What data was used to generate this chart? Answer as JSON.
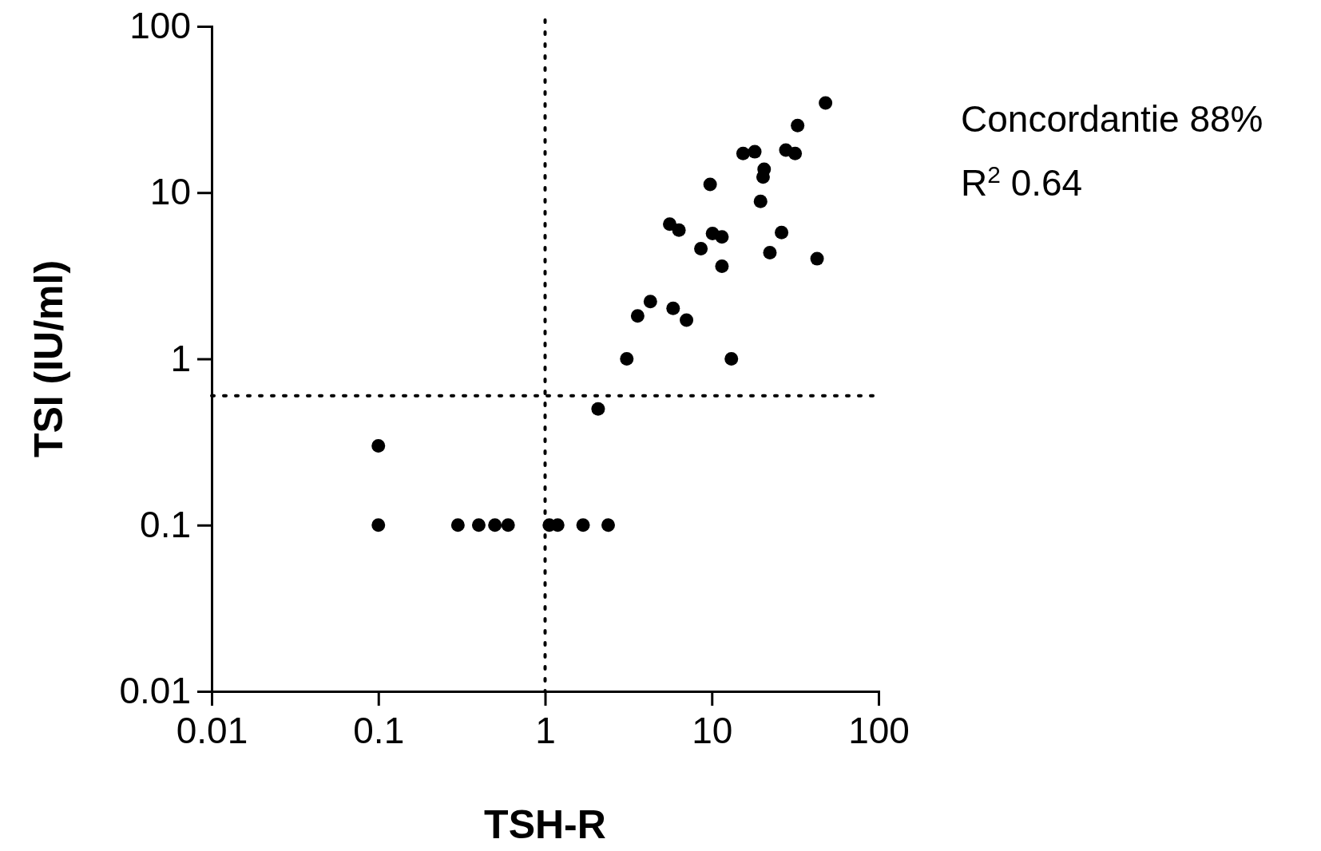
{
  "chart_data": {
    "type": "scatter",
    "xlabel": "TSH-R",
    "ylabel": "TSI (IU/ml)",
    "log": "xy",
    "marker": "circle",
    "xlim": [
      0.01,
      100
    ],
    "ylim": [
      0.01,
      100
    ],
    "xticks": [
      0.01,
      0.1,
      1,
      10,
      100
    ],
    "yticks": [
      0.01,
      0.1,
      1,
      10,
      100
    ],
    "series": [
      {
        "color": "#000000",
        "x": [
          0.1,
          0.1,
          0.3,
          0.4,
          0.5,
          0.6,
          1.06,
          1.19,
          1.69,
          2.39,
          2.08,
          3.09,
          3.59,
          4.28,
          5.59,
          6.35,
          5.86,
          7.05,
          8.6,
          9.77,
          10.1,
          11.5,
          11.5,
          13.1,
          15.4,
          18.1,
          19.6,
          20.6,
          20.3,
          22.3,
          26.2,
          27.8,
          31.6,
          32.7,
          42.8,
          48.1
        ],
        "values": [
          0.3,
          0.1,
          0.1,
          0.1,
          0.1,
          0.1,
          0.1,
          0.1,
          0.1,
          0.1,
          0.5,
          1.0,
          1.81,
          2.21,
          6.46,
          5.95,
          2.01,
          1.71,
          4.6,
          11.2,
          5.68,
          5.42,
          3.61,
          1.0,
          17.2,
          17.6,
          8.85,
          13.8,
          12.4,
          4.35,
          5.75,
          18.0,
          17.2,
          25.3,
          4.0,
          34.6
        ]
      }
    ],
    "ref_lines": [
      {
        "axis": "x",
        "value": 1,
        "color": "#000000",
        "line_style": "dotted"
      },
      {
        "axis": "y",
        "value": 0.6,
        "color": "#000000",
        "line_style": "dotted"
      }
    ],
    "annotations": [
      "Concordantie 88%",
      "R$^{2}$ 0.64"
    ]
  }
}
